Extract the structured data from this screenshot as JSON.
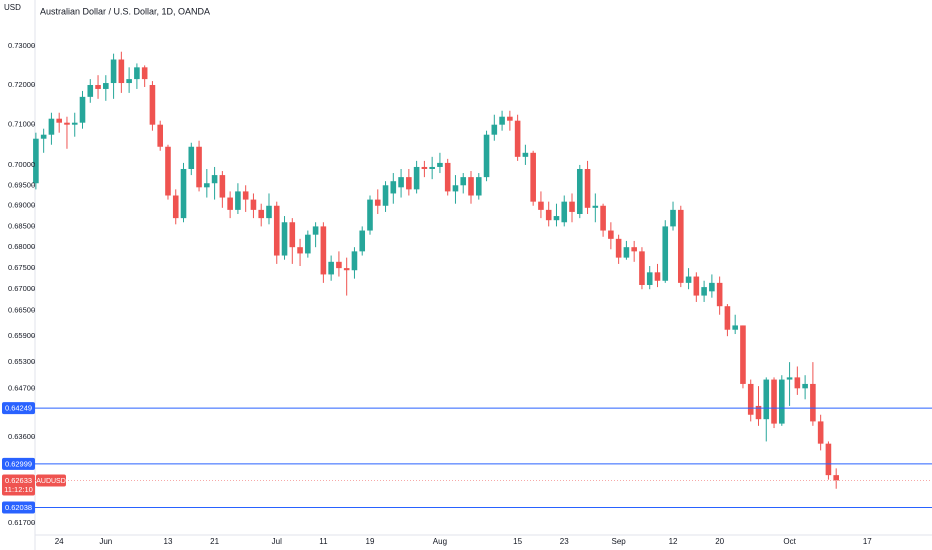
{
  "chart_data": {
    "type": "candlestick",
    "title": "Australian Dollar / U.S. Dollar, 1D, OANDA",
    "y_unit": "USD",
    "log_scale": true,
    "grid": false,
    "up_color": "#26a69a",
    "down_color": "#ef5350",
    "level_color": "#2962ff",
    "ylim": [
      0.6144,
      0.7419
    ],
    "yticks": [
      {
        "value": 0.73,
        "label": "0.73000"
      },
      {
        "value": 0.72,
        "label": "0.72000"
      },
      {
        "value": 0.71,
        "label": "0.71000"
      },
      {
        "value": 0.7,
        "label": "0.70000"
      },
      {
        "value": 0.695,
        "label": "0.69500"
      },
      {
        "value": 0.69,
        "label": "0.69000"
      },
      {
        "value": 0.685,
        "label": "0.68500"
      },
      {
        "value": 0.68,
        "label": "0.68000"
      },
      {
        "value": 0.675,
        "label": "0.67500"
      },
      {
        "value": 0.67,
        "label": "0.67000"
      },
      {
        "value": 0.665,
        "label": "0.66500"
      },
      {
        "value": 0.659,
        "label": "0.65900"
      },
      {
        "value": 0.653,
        "label": "0.65300"
      },
      {
        "value": 0.647,
        "label": "0.64700"
      },
      {
        "value": 0.636,
        "label": "0.63600"
      },
      {
        "value": 0.617,
        "label": "0.61700"
      }
    ],
    "levels": [
      0.64249,
      0.62999,
      0.62038
    ],
    "countdown": "11:12:10",
    "categories": [
      null,
      null,
      null,
      "24",
      null,
      null,
      null,
      null,
      null,
      "Jun",
      null,
      null,
      null,
      null,
      null,
      null,
      null,
      "13",
      null,
      null,
      null,
      null,
      null,
      "21",
      null,
      null,
      null,
      null,
      null,
      null,
      null,
      "Jul",
      null,
      null,
      null,
      null,
      null,
      "11",
      null,
      null,
      null,
      null,
      null,
      "19",
      null,
      null,
      null,
      null,
      null,
      null,
      null,
      null,
      "Aug",
      null,
      null,
      null,
      null,
      null,
      null,
      null,
      null,
      null,
      "15",
      null,
      null,
      null,
      null,
      null,
      "23",
      null,
      null,
      null,
      null,
      null,
      null,
      "Sep",
      null,
      null,
      null,
      null,
      null,
      null,
      "12",
      null,
      null,
      null,
      null,
      null,
      "20",
      null,
      null,
      null,
      null,
      null,
      null,
      null,
      null,
      "Oct",
      null,
      null,
      null,
      null,
      null,
      null,
      null,
      null,
      null,
      "17"
    ],
    "series": [
      {
        "name": "AUDUSD",
        "open": [
          0.6955,
          0.7065,
          0.7075,
          0.7115,
          0.7105,
          0.71,
          0.7105,
          0.717,
          0.72,
          0.719,
          0.7205,
          0.7265,
          0.7205,
          0.7215,
          0.7245,
          0.72,
          0.71,
          0.7045,
          0.6925,
          0.687,
          0.699,
          0.7045,
          0.6945,
          0.6955,
          0.6975,
          0.692,
          0.689,
          0.6935,
          0.6915,
          0.689,
          0.687,
          0.69,
          0.678,
          0.686,
          0.68,
          0.6785,
          0.683,
          0.685,
          0.6735,
          0.6765,
          0.675,
          0.6745,
          0.679,
          0.684,
          0.6915,
          0.69,
          0.693,
          0.6945,
          0.697,
          0.694,
          0.6995,
          0.699,
          0.6995,
          0.7005,
          0.6935,
          0.695,
          0.697,
          0.6925,
          0.697,
          0.7075,
          0.71,
          0.712,
          0.711,
          0.702,
          0.703,
          0.691,
          0.689,
          0.6865,
          0.686,
          0.691,
          0.688,
          0.699,
          0.6895,
          0.69,
          0.684,
          0.682,
          0.6775,
          0.68,
          0.679,
          0.671,
          0.674,
          0.672,
          0.685,
          0.689,
          0.6715,
          0.673,
          0.6685,
          0.6695,
          0.6715,
          0.666,
          0.6605,
          0.6615,
          0.648,
          0.643,
          0.64,
          0.649,
          0.639,
          0.649,
          0.6495,
          0.647,
          0.648,
          0.6395,
          0.6345,
          0.6275,
          null,
          null,
          null,
          null
        ],
        "high": [
          0.708,
          0.709,
          0.713,
          0.713,
          0.712,
          0.713,
          0.7185,
          0.7215,
          0.7225,
          0.7225,
          0.728,
          0.7285,
          0.7245,
          0.7255,
          0.725,
          0.721,
          0.711,
          0.705,
          0.694,
          0.7005,
          0.7055,
          0.706,
          0.699,
          0.6995,
          0.6985,
          0.6935,
          0.6955,
          0.695,
          0.693,
          0.6905,
          0.693,
          0.691,
          0.6875,
          0.687,
          0.682,
          0.684,
          0.686,
          0.686,
          0.678,
          0.679,
          0.6775,
          0.68,
          0.685,
          0.6925,
          0.694,
          0.696,
          0.698,
          0.699,
          0.699,
          0.701,
          0.701,
          0.702,
          0.703,
          0.7015,
          0.6975,
          0.698,
          0.6985,
          0.698,
          0.7085,
          0.7125,
          0.7135,
          0.7135,
          0.7125,
          0.705,
          0.7035,
          0.6935,
          0.691,
          0.6905,
          0.6925,
          0.693,
          0.7,
          0.701,
          0.693,
          0.6905,
          0.686,
          0.683,
          0.6815,
          0.6815,
          0.68,
          0.6755,
          0.676,
          0.6865,
          0.691,
          0.69,
          0.675,
          0.674,
          0.672,
          0.6735,
          0.673,
          0.6665,
          0.664,
          0.6615,
          0.649,
          0.6475,
          0.6495,
          0.6495,
          0.65,
          0.653,
          0.652,
          0.65,
          0.653,
          0.641,
          0.635,
          0.629,
          null,
          null,
          null,
          null
        ],
        "low": [
          0.694,
          0.703,
          0.705,
          0.708,
          0.704,
          0.707,
          0.709,
          0.7155,
          0.7165,
          0.716,
          0.7165,
          0.718,
          0.718,
          0.719,
          0.7195,
          0.7085,
          0.7035,
          0.6915,
          0.6855,
          0.686,
          0.6975,
          0.6935,
          0.692,
          0.6915,
          0.6895,
          0.687,
          0.688,
          0.6885,
          0.687,
          0.685,
          0.6855,
          0.676,
          0.677,
          0.676,
          0.6755,
          0.6775,
          0.68,
          0.6715,
          0.672,
          0.673,
          0.6685,
          0.6725,
          0.678,
          0.683,
          0.688,
          0.6885,
          0.6905,
          0.692,
          0.6925,
          0.693,
          0.697,
          0.6965,
          0.698,
          0.6925,
          0.6905,
          0.693,
          0.6905,
          0.6915,
          0.696,
          0.706,
          0.7085,
          0.7085,
          0.701,
          0.7,
          0.69,
          0.687,
          0.685,
          0.685,
          0.685,
          0.686,
          0.687,
          0.688,
          0.686,
          0.6825,
          0.6795,
          0.676,
          0.677,
          0.6765,
          0.67,
          0.67,
          0.6705,
          0.6715,
          0.684,
          0.6705,
          0.67,
          0.667,
          0.667,
          0.668,
          0.664,
          0.659,
          0.6595,
          0.647,
          0.6395,
          0.6385,
          0.635,
          0.638,
          0.6385,
          0.643,
          0.6455,
          0.6445,
          0.6385,
          0.633,
          0.6265,
          0.6245,
          null,
          null,
          null,
          null
        ],
        "close": [
          0.7065,
          0.7075,
          0.7115,
          0.7105,
          0.71,
          0.7105,
          0.717,
          0.72,
          0.719,
          0.7205,
          0.7265,
          0.7205,
          0.7215,
          0.7245,
          0.7215,
          0.71,
          0.7045,
          0.6925,
          0.687,
          0.699,
          0.7045,
          0.6945,
          0.6955,
          0.6975,
          0.692,
          0.689,
          0.6935,
          0.6915,
          0.689,
          0.687,
          0.69,
          0.678,
          0.686,
          0.68,
          0.6785,
          0.683,
          0.685,
          0.6735,
          0.6765,
          0.675,
          0.6745,
          0.679,
          0.684,
          0.6915,
          0.69,
          0.695,
          0.696,
          0.697,
          0.694,
          0.6995,
          0.699,
          0.6995,
          0.7005,
          0.6935,
          0.695,
          0.697,
          0.6925,
          0.697,
          0.7075,
          0.71,
          0.712,
          0.711,
          0.702,
          0.703,
          0.691,
          0.689,
          0.6865,
          0.6875,
          0.691,
          0.6885,
          0.699,
          0.6895,
          0.69,
          0.684,
          0.682,
          0.6775,
          0.68,
          0.679,
          0.671,
          0.674,
          0.672,
          0.685,
          0.689,
          0.6715,
          0.673,
          0.6685,
          0.6705,
          0.6715,
          0.666,
          0.6605,
          0.6615,
          0.648,
          0.641,
          0.64,
          0.649,
          0.639,
          0.649,
          0.6495,
          0.647,
          0.648,
          0.6395,
          0.6345,
          0.6275,
          0.62633,
          null,
          null,
          null,
          null
        ]
      }
    ]
  }
}
